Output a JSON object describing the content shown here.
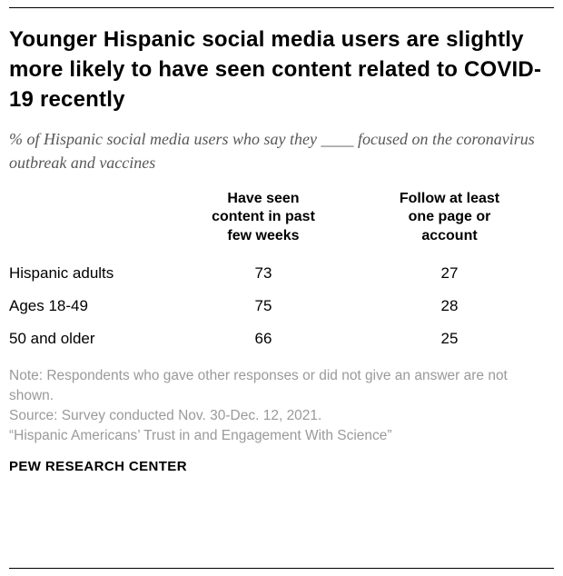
{
  "title": "Younger Hispanic social media users are slightly more likely to have seen content related to COVID-19 recently",
  "subtitle": "% of Hispanic social media users who say they ____ focused on the coronavirus outbreak and vaccines",
  "chart_data": {
    "type": "table",
    "col_headers": [
      "Have seen\ncontent in past\nfew weeks",
      "Follow at least\none page or\naccount"
    ],
    "rows": [
      {
        "label": "Hispanic adults",
        "values": [
          73,
          27
        ]
      },
      {
        "label": "Ages 18-49",
        "values": [
          75,
          28
        ]
      },
      {
        "label": "50 and older",
        "values": [
          66,
          25
        ]
      }
    ]
  },
  "notes": {
    "note_line": "Note: Respondents who gave other responses or did not give an answer are not shown.",
    "source_line": "Source: Survey conducted Nov. 30-Dec. 12, 2021.",
    "report_line": "“Hispanic Americans’ Trust in and Engagement With Science”"
  },
  "footer": "PEW RESEARCH CENTER"
}
